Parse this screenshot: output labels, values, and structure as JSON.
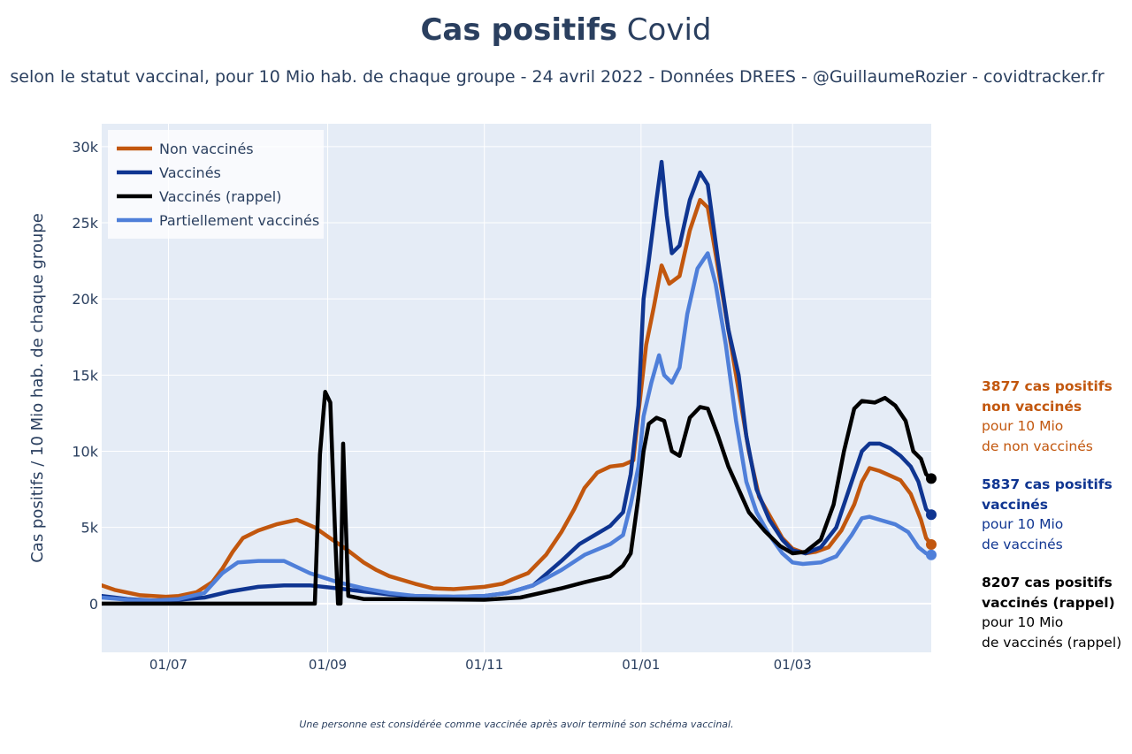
{
  "header": {
    "title_bold": "Cas positifs",
    "title_rest": "Covid",
    "subtitle": "selon le statut vaccinal, pour 10 Mio hab. de chaque groupe - 24 avril 2022 - Données DREES - @GuillaumeRozier - covidtracker.fr"
  },
  "annotations": [
    {
      "bold1": "3877 cas positifs",
      "bold2": "non vaccinés",
      "line3": "pour 10 Mio",
      "line4": "de non vaccinés",
      "color": "#c2570e"
    },
    {
      "bold1": "5837 cas positifs",
      "bold2": "vaccinés",
      "line3": "pour 10 Mio",
      "line4": "de vaccinés",
      "color": "#0f3591"
    },
    {
      "bold1": "8207 cas positifs",
      "bold2": "vaccinés (rappel)",
      "line3": "pour 10 Mio",
      "line4": "de vaccinés (rappel)",
      "color": "#000000"
    }
  ],
  "footnote": "Une personne est considérée comme vaccinée après avoir terminé son schéma vaccinal.",
  "chart_data": {
    "type": "line",
    "title": "Cas positifs Covid",
    "xlabel": "",
    "ylabel": "Cas positifs / 10 Mio hab. de chaque groupe",
    "ylim": [
      -3200,
      31500
    ],
    "xlim": [
      "2021-06-05",
      "2022-04-24"
    ],
    "yticks": [
      0,
      5000,
      10000,
      15000,
      20000,
      25000,
      30000
    ],
    "ytick_labels": [
      "0",
      "5k",
      "10k",
      "15k",
      "20k",
      "25k",
      "30k"
    ],
    "xticks": [
      "2021-07-01",
      "2021-09-01",
      "2021-11-01",
      "2022-01-01",
      "2022-03-01"
    ],
    "xtick_labels": [
      "01/07",
      "01/09",
      "01/11",
      "01/01",
      "01/03"
    ],
    "grid": true,
    "legend_position": "top-left",
    "series": [
      {
        "name": "Non vaccinés",
        "color": "#c2570e",
        "points": [
          [
            "2021-06-05",
            1200
          ],
          [
            "2021-06-10",
            900
          ],
          [
            "2021-06-20",
            550
          ],
          [
            "2021-06-30",
            450
          ],
          [
            "2021-07-05",
            500
          ],
          [
            "2021-07-12",
            750
          ],
          [
            "2021-07-18",
            1400
          ],
          [
            "2021-07-22",
            2300
          ],
          [
            "2021-07-26",
            3400
          ],
          [
            "2021-07-30",
            4300
          ],
          [
            "2021-08-05",
            4800
          ],
          [
            "2021-08-12",
            5200
          ],
          [
            "2021-08-20",
            5500
          ],
          [
            "2021-08-27",
            5000
          ],
          [
            "2021-09-01",
            4400
          ],
          [
            "2021-09-08",
            3600
          ],
          [
            "2021-09-15",
            2700
          ],
          [
            "2021-09-20",
            2200
          ],
          [
            "2021-09-25",
            1800
          ],
          [
            "2021-10-05",
            1300
          ],
          [
            "2021-10-12",
            1000
          ],
          [
            "2021-10-20",
            950
          ],
          [
            "2021-10-28",
            1050
          ],
          [
            "2021-11-01",
            1100
          ],
          [
            "2021-11-08",
            1300
          ],
          [
            "2021-11-12",
            1600
          ],
          [
            "2021-11-18",
            2000
          ],
          [
            "2021-11-25",
            3200
          ],
          [
            "2021-12-01",
            4700
          ],
          [
            "2021-12-06",
            6200
          ],
          [
            "2021-12-10",
            7600
          ],
          [
            "2021-12-15",
            8600
          ],
          [
            "2021-12-20",
            9000
          ],
          [
            "2021-12-25",
            9100
          ],
          [
            "2021-12-29",
            9400
          ],
          [
            "2021-12-31",
            12500
          ],
          [
            "2022-01-03",
            17000
          ],
          [
            "2022-01-06",
            19500
          ],
          [
            "2022-01-09",
            22200
          ],
          [
            "2022-01-12",
            21000
          ],
          [
            "2022-01-16",
            21500
          ],
          [
            "2022-01-20",
            24500
          ],
          [
            "2022-01-24",
            26500
          ],
          [
            "2022-01-27",
            26000
          ],
          [
            "2022-01-31",
            22000
          ],
          [
            "2022-02-04",
            18000
          ],
          [
            "2022-02-08",
            14000
          ],
          [
            "2022-02-12",
            10000
          ],
          [
            "2022-02-16",
            7000
          ],
          [
            "2022-02-20",
            5800
          ],
          [
            "2022-02-25",
            4300
          ],
          [
            "2022-03-01",
            3600
          ],
          [
            "2022-03-06",
            3300
          ],
          [
            "2022-03-10",
            3400
          ],
          [
            "2022-03-15",
            3700
          ],
          [
            "2022-03-20",
            4800
          ],
          [
            "2022-03-25",
            6500
          ],
          [
            "2022-03-28",
            8000
          ],
          [
            "2022-03-31",
            8900
          ],
          [
            "2022-04-04",
            8700
          ],
          [
            "2022-04-08",
            8400
          ],
          [
            "2022-04-12",
            8100
          ],
          [
            "2022-04-16",
            7200
          ],
          [
            "2022-04-20",
            5500
          ],
          [
            "2022-04-22",
            4300
          ],
          [
            "2022-04-24",
            3877
          ]
        ]
      },
      {
        "name": "Vaccinés",
        "color": "#0f3591",
        "points": [
          [
            "2021-06-05",
            500
          ],
          [
            "2021-06-15",
            300
          ],
          [
            "2021-06-25",
            200
          ],
          [
            "2021-07-05",
            250
          ],
          [
            "2021-07-15",
            400
          ],
          [
            "2021-07-25",
            800
          ],
          [
            "2021-08-05",
            1100
          ],
          [
            "2021-08-15",
            1200
          ],
          [
            "2021-08-25",
            1200
          ],
          [
            "2021-09-05",
            1000
          ],
          [
            "2021-09-15",
            800
          ],
          [
            "2021-09-25",
            600
          ],
          [
            "2021-10-05",
            500
          ],
          [
            "2021-10-20",
            450
          ],
          [
            "2021-11-01",
            500
          ],
          [
            "2021-11-10",
            700
          ],
          [
            "2021-11-20",
            1200
          ],
          [
            "2021-12-01",
            2800
          ],
          [
            "2021-12-08",
            3900
          ],
          [
            "2021-12-15",
            4600
          ],
          [
            "2021-12-20",
            5100
          ],
          [
            "2021-12-25",
            6000
          ],
          [
            "2021-12-28",
            8500
          ],
          [
            "2021-12-31",
            13000
          ],
          [
            "2022-01-02",
            20000
          ],
          [
            "2022-01-04",
            22500
          ],
          [
            "2022-01-07",
            26500
          ],
          [
            "2022-01-09",
            29000
          ],
          [
            "2022-01-11",
            25500
          ],
          [
            "2022-01-13",
            23000
          ],
          [
            "2022-01-16",
            23500
          ],
          [
            "2022-01-20",
            26500
          ],
          [
            "2022-01-24",
            28300
          ],
          [
            "2022-01-27",
            27500
          ],
          [
            "2022-01-31",
            22500
          ],
          [
            "2022-02-04",
            18000
          ],
          [
            "2022-02-08",
            15000
          ],
          [
            "2022-02-11",
            11000
          ],
          [
            "2022-02-15",
            7500
          ],
          [
            "2022-02-20",
            5500
          ],
          [
            "2022-02-25",
            4200
          ],
          [
            "2022-03-01",
            3500
          ],
          [
            "2022-03-06",
            3300
          ],
          [
            "2022-03-12",
            3700
          ],
          [
            "2022-03-18",
            5000
          ],
          [
            "2022-03-24",
            8000
          ],
          [
            "2022-03-28",
            10000
          ],
          [
            "2022-03-31",
            10500
          ],
          [
            "2022-04-04",
            10500
          ],
          [
            "2022-04-08",
            10200
          ],
          [
            "2022-04-12",
            9700
          ],
          [
            "2022-04-16",
            9000
          ],
          [
            "2022-04-19",
            8000
          ],
          [
            "2022-04-22",
            6200
          ],
          [
            "2022-04-24",
            5837
          ]
        ]
      },
      {
        "name": "Vaccinés (rappel)",
        "color": "#000000",
        "points": [
          [
            "2021-06-05",
            0
          ],
          [
            "2021-08-27",
            0
          ],
          [
            "2021-08-29",
            9800
          ],
          [
            "2021-08-31",
            13900
          ],
          [
            "2021-09-02",
            13200
          ],
          [
            "2021-09-04",
            4000
          ],
          [
            "2021-09-05",
            0
          ],
          [
            "2021-09-06",
            0
          ],
          [
            "2021-09-07",
            10500
          ],
          [
            "2021-09-09",
            500
          ],
          [
            "2021-09-15",
            300
          ],
          [
            "2021-10-01",
            300
          ],
          [
            "2021-11-01",
            250
          ],
          [
            "2021-11-15",
            400
          ],
          [
            "2021-12-01",
            1000
          ],
          [
            "2021-12-10",
            1400
          ],
          [
            "2021-12-20",
            1800
          ],
          [
            "2021-12-25",
            2500
          ],
          [
            "2021-12-28",
            3300
          ],
          [
            "2021-12-31",
            7000
          ],
          [
            "2022-01-02",
            10000
          ],
          [
            "2022-01-04",
            11800
          ],
          [
            "2022-01-07",
            12200
          ],
          [
            "2022-01-10",
            12000
          ],
          [
            "2022-01-13",
            10000
          ],
          [
            "2022-01-16",
            9700
          ],
          [
            "2022-01-20",
            12200
          ],
          [
            "2022-01-24",
            12900
          ],
          [
            "2022-01-27",
            12800
          ],
          [
            "2022-01-31",
            11000
          ],
          [
            "2022-02-04",
            9000
          ],
          [
            "2022-02-08",
            7500
          ],
          [
            "2022-02-12",
            6000
          ],
          [
            "2022-02-18",
            4800
          ],
          [
            "2022-02-24",
            3800
          ],
          [
            "2022-03-01",
            3300
          ],
          [
            "2022-03-06",
            3400
          ],
          [
            "2022-03-12",
            4200
          ],
          [
            "2022-03-17",
            6500
          ],
          [
            "2022-03-21",
            10000
          ],
          [
            "2022-03-25",
            12800
          ],
          [
            "2022-03-28",
            13300
          ],
          [
            "2022-04-02",
            13200
          ],
          [
            "2022-04-06",
            13500
          ],
          [
            "2022-04-10",
            13000
          ],
          [
            "2022-04-14",
            12000
          ],
          [
            "2022-04-17",
            10000
          ],
          [
            "2022-04-20",
            9500
          ],
          [
            "2022-04-22",
            8500
          ],
          [
            "2022-04-24",
            8207
          ]
        ]
      },
      {
        "name": "Partiellement vaccinés",
        "color": "#4f7fd9",
        "points": [
          [
            "2021-06-05",
            400
          ],
          [
            "2021-06-15",
            250
          ],
          [
            "2021-06-25",
            200
          ],
          [
            "2021-07-05",
            300
          ],
          [
            "2021-07-15",
            700
          ],
          [
            "2021-07-22",
            2000
          ],
          [
            "2021-07-28",
            2700
          ],
          [
            "2021-08-05",
            2800
          ],
          [
            "2021-08-15",
            2800
          ],
          [
            "2021-08-25",
            2000
          ],
          [
            "2021-09-05",
            1400
          ],
          [
            "2021-09-15",
            1000
          ],
          [
            "2021-09-25",
            700
          ],
          [
            "2021-10-05",
            500
          ],
          [
            "2021-10-20",
            450
          ],
          [
            "2021-11-01",
            500
          ],
          [
            "2021-11-10",
            700
          ],
          [
            "2021-11-20",
            1200
          ],
          [
            "2021-12-01",
            2200
          ],
          [
            "2021-12-10",
            3200
          ],
          [
            "2021-12-20",
            3900
          ],
          [
            "2021-12-25",
            4500
          ],
          [
            "2021-12-28",
            6500
          ],
          [
            "2021-12-31",
            9000
          ],
          [
            "2022-01-02",
            12300
          ],
          [
            "2022-01-05",
            14500
          ],
          [
            "2022-01-08",
            16300
          ],
          [
            "2022-01-10",
            15000
          ],
          [
            "2022-01-13",
            14500
          ],
          [
            "2022-01-16",
            15500
          ],
          [
            "2022-01-19",
            19000
          ],
          [
            "2022-01-23",
            22000
          ],
          [
            "2022-01-27",
            23000
          ],
          [
            "2022-01-30",
            21000
          ],
          [
            "2022-02-03",
            17000
          ],
          [
            "2022-02-07",
            12000
          ],
          [
            "2022-02-11",
            8000
          ],
          [
            "2022-02-15",
            6000
          ],
          [
            "2022-02-20",
            4500
          ],
          [
            "2022-02-25",
            3300
          ],
          [
            "2022-03-01",
            2700
          ],
          [
            "2022-03-05",
            2600
          ],
          [
            "2022-03-12",
            2700
          ],
          [
            "2022-03-18",
            3100
          ],
          [
            "2022-03-24",
            4500
          ],
          [
            "2022-03-28",
            5600
          ],
          [
            "2022-03-31",
            5700
          ],
          [
            "2022-04-04",
            5500
          ],
          [
            "2022-04-10",
            5200
          ],
          [
            "2022-04-15",
            4700
          ],
          [
            "2022-04-19",
            3700
          ],
          [
            "2022-04-22",
            3300
          ],
          [
            "2022-04-24",
            3200
          ]
        ]
      }
    ]
  }
}
